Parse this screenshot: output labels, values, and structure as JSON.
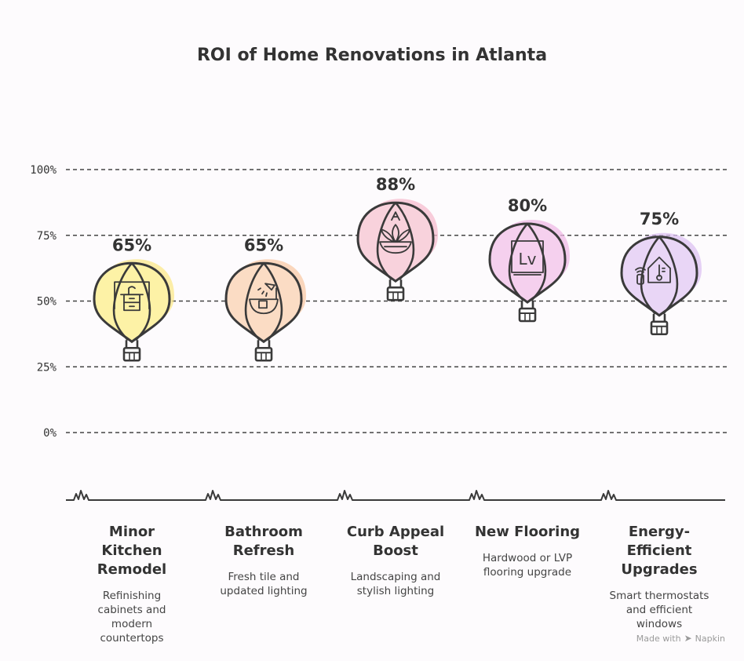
{
  "chart_data": {
    "type": "bar",
    "title": "ROI of Home Renovations in Atlanta",
    "xlabel": "",
    "ylabel": "",
    "ylim": [
      0,
      100
    ],
    "yticks": [
      0,
      25,
      50,
      75,
      100
    ],
    "ytick_labels": [
      "0%",
      "25%",
      "50%",
      "75%",
      "100%"
    ],
    "grid": true,
    "categories": [
      "Minor Kitchen Remodel",
      "Bathroom Refresh",
      "Curb Appeal Boost",
      "New Flooring",
      "Energy-Efficient Upgrades"
    ],
    "values": [
      65,
      65,
      88,
      80,
      75
    ],
    "value_labels": [
      "65%",
      "65%",
      "88%",
      "80%",
      "75%"
    ],
    "category_title_lines": [
      [
        "Minor",
        "Kitchen",
        "Remodel"
      ],
      [
        "Bathroom",
        "Refresh"
      ],
      [
        "Curb Appeal",
        "Boost"
      ],
      [
        "New Flooring"
      ],
      [
        "Energy-",
        "Efficient",
        "Upgrades"
      ]
    ],
    "descriptions": [
      [
        "Refinishing",
        "cabinets and",
        "modern",
        "countertops"
      ],
      [
        "Fresh tile and",
        "updated lighting"
      ],
      [
        "Landscaping and",
        "stylish lighting"
      ],
      [
        "Hardwood or LVP",
        "flooring upgrade"
      ],
      [
        "Smart thermostats",
        "and efficient",
        "windows"
      ]
    ],
    "icons": [
      "kitchen-cabinet-icon",
      "bathroom-shower-icon",
      "lotus-plant-icon",
      "lvp-flooring-icon",
      "smart-home-thermostat-icon"
    ],
    "colors": [
      "#fdf2a6",
      "#fbdcc4",
      "#f8d2dc",
      "#f5d0ee",
      "#e9d6f6"
    ],
    "accents": [
      "#fbe88a",
      "#f8c9a6",
      "#f5bccd",
      "#efb9e5",
      "#dcc2f2"
    ],
    "flooring_label": "Lv"
  },
  "footer": {
    "made_with": "Made with",
    "brand": "Napkin"
  }
}
